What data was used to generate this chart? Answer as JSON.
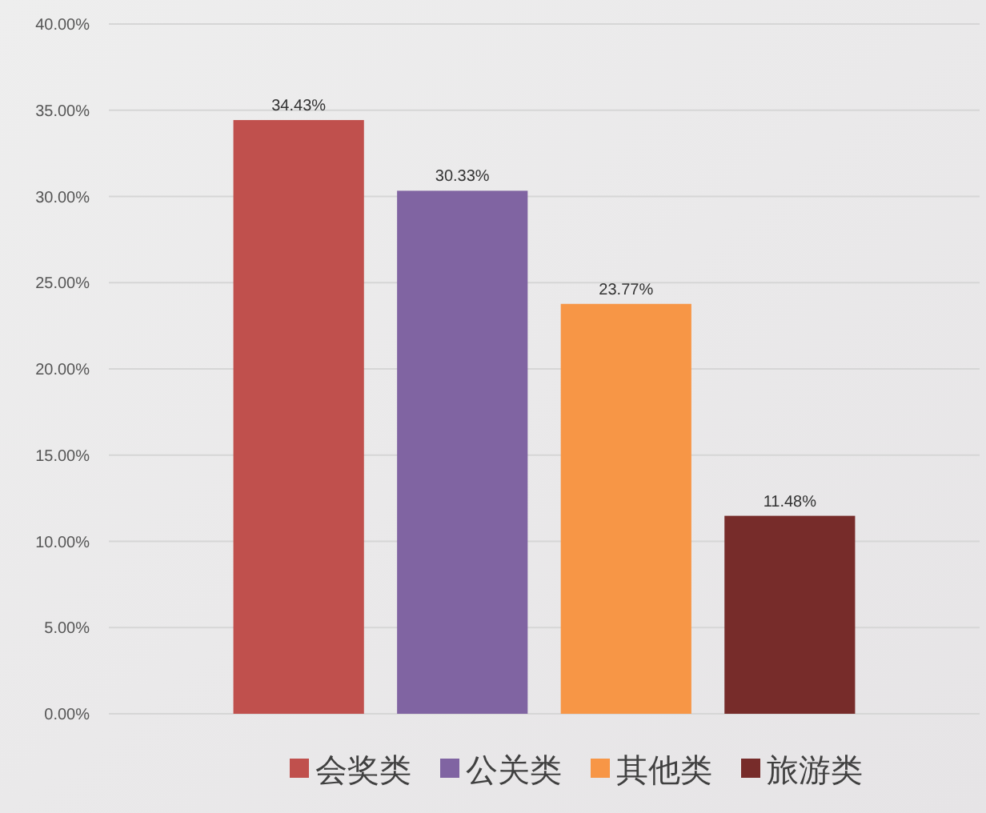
{
  "chart_data": {
    "type": "bar",
    "categories": [
      null
    ],
    "series": [
      {
        "name": "会奖类",
        "color": "#c0504d",
        "values": [
          34.43
        ],
        "value_labels": [
          "34.43%"
        ]
      },
      {
        "name": "公关类",
        "color": "#8064a2",
        "values": [
          30.33
        ],
        "value_labels": [
          "30.33%"
        ]
      },
      {
        "name": "其他类",
        "color": "#f79646",
        "values": [
          23.77
        ],
        "value_labels": [
          "23.77%"
        ]
      },
      {
        "name": "旅游类",
        "color": "#772c2a",
        "values": [
          11.48
        ],
        "value_labels": [
          "11.48%"
        ]
      }
    ],
    "ylim": [
      0,
      40
    ],
    "yticks": [
      {
        "value": 0,
        "label": "0.00%"
      },
      {
        "value": 5,
        "label": "5.00%"
      },
      {
        "value": 10,
        "label": "10.00%"
      },
      {
        "value": 15,
        "label": "15.00%"
      },
      {
        "value": 20,
        "label": "20.00%"
      },
      {
        "value": 25,
        "label": "25.00%"
      },
      {
        "value": 30,
        "label": "30.00%"
      },
      {
        "value": 35,
        "label": "35.00%"
      },
      {
        "value": 40,
        "label": "40.00%"
      }
    ],
    "grid": "y",
    "legend": "bottom"
  }
}
